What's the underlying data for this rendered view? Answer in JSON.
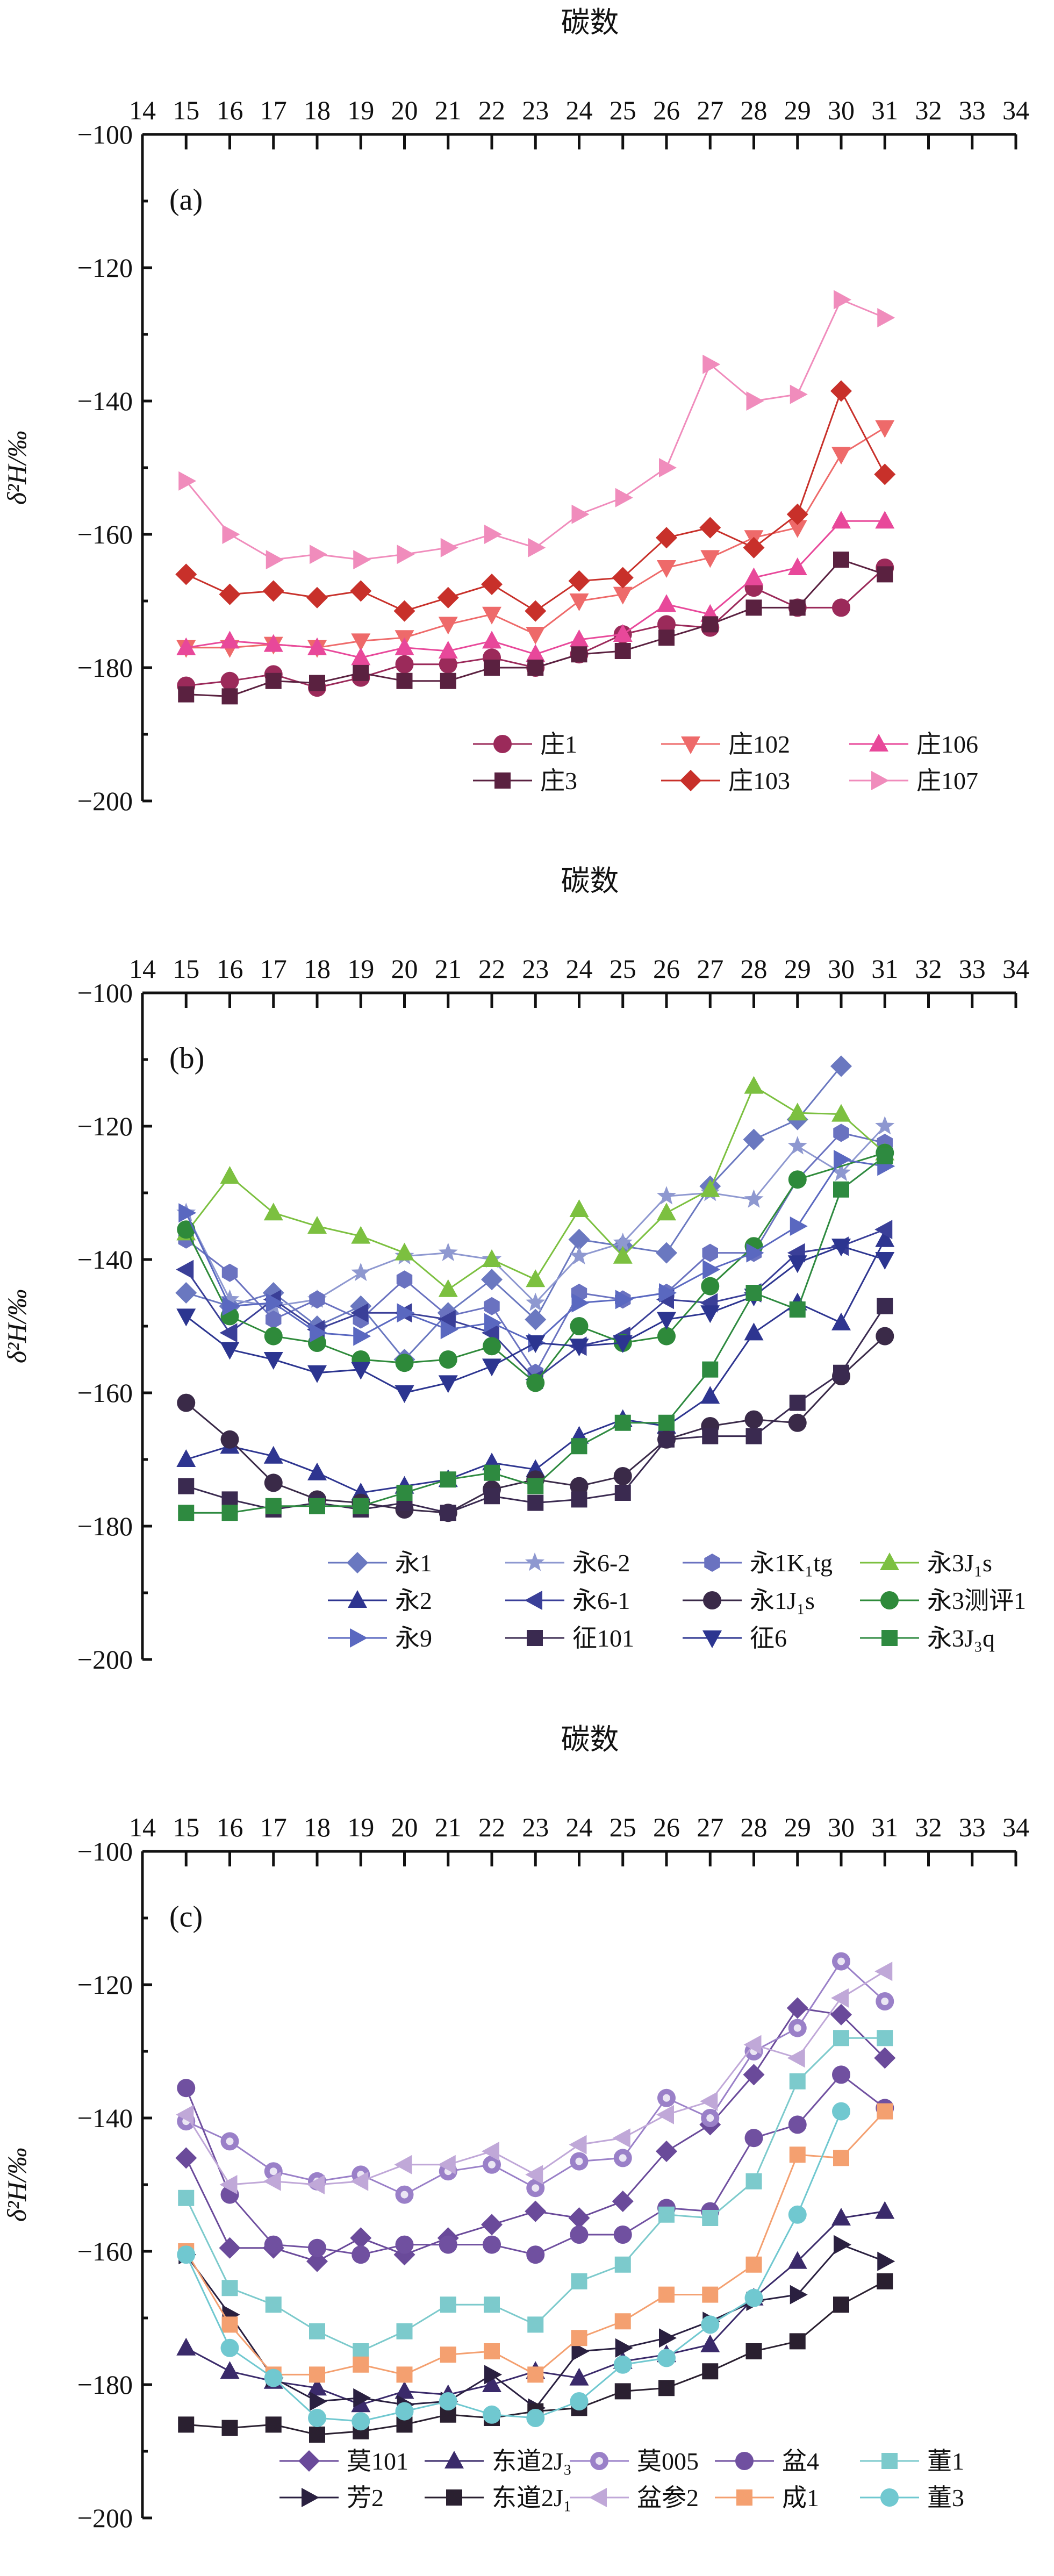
{
  "chart_data": [
    {
      "type": "line",
      "panel_label": "(a)",
      "title": "碳数",
      "ylabel": "δ²H/‰",
      "xlim": [
        14,
        34
      ],
      "ylim": [
        -200,
        -100
      ],
      "xticks": [
        14,
        15,
        16,
        17,
        18,
        19,
        20,
        21,
        22,
        23,
        24,
        25,
        26,
        27,
        28,
        29,
        30,
        31,
        32,
        33,
        34
      ],
      "yticks": [
        -100,
        -120,
        -140,
        -160,
        -180,
        -200
      ],
      "legend_cols": 3,
      "x": [
        15,
        16,
        17,
        18,
        19,
        20,
        21,
        22,
        23,
        24,
        25,
        26,
        27,
        28,
        29,
        30,
        31
      ],
      "series": [
        {
          "name": "庄1",
          "color": "#9b2a5a",
          "marker": "circle",
          "values": [
            -182.7,
            -182,
            -181,
            -183,
            -181.5,
            -179.5,
            -179.5,
            -178.5,
            -180,
            -178,
            -175,
            -173.5,
            -174,
            -168,
            -171,
            -171,
            -165
          ]
        },
        {
          "name": "庄102",
          "color": "#ee6a6a",
          "marker": "tri-down",
          "values": [
            -177,
            -177,
            -176.5,
            -177,
            -176,
            -175.5,
            -173.5,
            -172,
            -175,
            -170,
            -169,
            -165,
            -163.5,
            -160.5,
            -159,
            -148,
            -144
          ]
        },
        {
          "name": "庄106",
          "color": "#e8489a",
          "marker": "tri-up",
          "values": [
            -177,
            -176,
            -176.5,
            -177,
            -178.5,
            -177,
            -177.5,
            -176,
            -178,
            -175.8,
            -175,
            -170.5,
            -172,
            -166.5,
            -165,
            -158,
            -158
          ]
        },
        {
          "name": "庄3",
          "color": "#5a2140",
          "marker": "square",
          "values": [
            -184,
            -184.3,
            -182,
            -182.3,
            -180.8,
            -182,
            -182,
            -180,
            -180,
            -178,
            -177.5,
            -175.5,
            -173.5,
            -171,
            -171,
            -163.8,
            -166
          ]
        },
        {
          "name": "庄103",
          "color": "#c8302a",
          "marker": "diamond",
          "values": [
            -166,
            -169,
            -168.5,
            -169.5,
            -168.5,
            -171.5,
            -169.5,
            -167.5,
            -171.5,
            -167,
            -166.5,
            -160.5,
            -159,
            -162,
            -157,
            -138.5,
            -151
          ]
        },
        {
          "name": "庄107",
          "color": "#f08cbc",
          "marker": "tri-right",
          "values": [
            -152,
            -160,
            -163.8,
            -163,
            -163.8,
            -163,
            -162,
            -160,
            -162,
            -157,
            -154.5,
            -150,
            -134.5,
            -140,
            -139,
            -124.8,
            -127.5
          ]
        }
      ]
    },
    {
      "type": "line",
      "panel_label": "(b)",
      "title": "碳数",
      "ylabel": "δ²H/‰",
      "xlim": [
        14,
        34
      ],
      "ylim": [
        -200,
        -100
      ],
      "xticks": [
        14,
        15,
        16,
        17,
        18,
        19,
        20,
        21,
        22,
        23,
        24,
        25,
        26,
        27,
        28,
        29,
        30,
        31,
        32,
        33,
        34
      ],
      "yticks": [
        -100,
        -120,
        -140,
        -160,
        -180,
        -200
      ],
      "legend_cols": 4,
      "x": [
        15,
        16,
        17,
        18,
        19,
        20,
        21,
        22,
        23,
        24,
        25,
        26,
        27,
        28,
        29,
        30,
        31
      ],
      "series": [
        {
          "name": "永1",
          "color": "#6a78c0",
          "marker": "diamond",
          "values": [
            -145,
            -147,
            -145,
            -150,
            -147,
            -155,
            -148,
            -143,
            -149,
            -137,
            -138,
            -139,
            -129,
            -122,
            -119,
            -111,
            null
          ]
        },
        {
          "name": "永6-2",
          "color": "#8e98d0",
          "marker": "star",
          "values": [
            -133,
            -146,
            -147,
            -146,
            -142,
            -139.5,
            -139,
            -140,
            -146.5,
            -139.5,
            -137.5,
            -130.5,
            -130,
            -131,
            -123,
            -127,
            -120
          ]
        },
        {
          "name": "永1K₁tg",
          "color": "#6a72c0",
          "marker": "hexagon",
          "values": [
            -137,
            -142,
            -149,
            -146,
            -149,
            -143,
            -148.5,
            -147,
            -157,
            -145,
            -146,
            -145,
            -139,
            -139,
            -128,
            -121,
            -122.5
          ]
        },
        {
          "name": "永3J₁s",
          "color": "#7cc040",
          "marker": "tri-up",
          "values": [
            -136,
            -127.5,
            -133,
            -135,
            -136.5,
            -139,
            -144.5,
            -140,
            -143,
            -132.5,
            -139.5,
            -133,
            -129.5,
            -114,
            -118,
            -118.2,
            -124
          ]
        },
        {
          "name": "永2",
          "color": "#2e3590",
          "marker": "tri-up",
          "values": [
            -170,
            -168,
            -169.5,
            -172,
            -175,
            -174,
            -173,
            -170.5,
            -171.5,
            -166.5,
            -164,
            -165,
            -160.5,
            -151,
            -146.5,
            -149.5,
            -137
          ]
        },
        {
          "name": "永6-1",
          "color": "#3a3f98",
          "marker": "tri-left",
          "values": [
            -141.5,
            -151,
            -146,
            -150.5,
            -148,
            -148,
            -149,
            -151,
            -158,
            -153,
            -151.5,
            -146,
            -146.5,
            -145,
            -139,
            -138,
            -135.5
          ]
        },
        {
          "name": "永1J₁s",
          "color": "#3a2a48",
          "marker": "circle",
          "values": [
            -161.5,
            -167,
            -173.5,
            -176,
            -176.5,
            -177.5,
            -178,
            -174.5,
            -173,
            -174,
            -172.5,
            -167,
            -165,
            -164,
            -164.5,
            -157.5,
            -151.5
          ]
        },
        {
          "name": "永3测评1",
          "color": "#2e8a3a",
          "marker": "circle",
          "values": [
            -135.5,
            -148.5,
            -151.5,
            -152.5,
            -155,
            -155.5,
            -155,
            -153,
            -158.5,
            -150,
            -152.5,
            -151.5,
            -144,
            -138,
            -128,
            null,
            -124
          ]
        },
        {
          "name": "永9",
          "color": "#5a68c0",
          "marker": "tri-right",
          "values": [
            -133,
            -147,
            -146.5,
            -151,
            -151.5,
            -148,
            -150.5,
            -149.5,
            -152.5,
            -146.5,
            -146,
            -145,
            -141.5,
            -139,
            -135,
            -125,
            -126
          ]
        },
        {
          "name": "征101",
          "color": "#3a2a50",
          "marker": "square",
          "values": [
            -174,
            -176,
            -177.5,
            -176.5,
            -177.5,
            -176.5,
            -178,
            -175.5,
            -176.5,
            -176,
            -175,
            -167,
            -166.5,
            -166.5,
            -161.5,
            -157,
            -147
          ]
        },
        {
          "name": "征6",
          "color": "#2c3590",
          "marker": "tri-down",
          "values": [
            -148.5,
            -153.5,
            -155,
            -157,
            -156.5,
            -160,
            -158.5,
            -156,
            -152.5,
            -153,
            -152.5,
            -149,
            -148,
            -145.5,
            -140.5,
            -138,
            -140
          ]
        },
        {
          "name": "永3J₃q",
          "color": "#2e8a40",
          "marker": "square",
          "values": [
            -178,
            -178,
            -177,
            -177,
            -177,
            -175,
            -173,
            -172,
            -174,
            -168,
            -164.5,
            -164.5,
            -156.5,
            -145,
            -147.5,
            -129.5,
            -124.5
          ]
        }
      ]
    },
    {
      "type": "line",
      "panel_label": "(c)",
      "title": "碳数",
      "ylabel": "δ²H/‰",
      "xlim": [
        14,
        34
      ],
      "ylim": [
        -200,
        -100
      ],
      "xticks": [
        14,
        15,
        16,
        17,
        18,
        19,
        20,
        21,
        22,
        23,
        24,
        25,
        26,
        27,
        28,
        29,
        30,
        31,
        32,
        33,
        34
      ],
      "yticks": [
        -100,
        -120,
        -140,
        -160,
        -180,
        -200
      ],
      "legend_cols": 5,
      "x": [
        15,
        16,
        17,
        18,
        19,
        20,
        21,
        22,
        23,
        24,
        25,
        26,
        27,
        28,
        29,
        30,
        31
      ],
      "series": [
        {
          "name": "莫101",
          "color": "#6a4a9a",
          "marker": "diamond",
          "values": [
            -146,
            -159.5,
            -159.5,
            -161.5,
            -158,
            -160.5,
            -158,
            -156,
            -154,
            -155,
            -152.5,
            -145,
            -141,
            -133.5,
            -123.5,
            -124.5,
            -131
          ]
        },
        {
          "name": "东道2J₃",
          "color": "#3a2a6a",
          "marker": "tri-up",
          "values": [
            -174.5,
            -178,
            -179.5,
            -180.5,
            -183,
            -181,
            -181.5,
            -180,
            -178,
            -179,
            -176.5,
            -175.5,
            -174,
            -167,
            -161.5,
            -155,
            -154
          ]
        },
        {
          "name": "莫005",
          "color": "#9a80c8",
          "marker": "ring",
          "values": [
            -140.5,
            -143.5,
            -148,
            -149.5,
            -148.5,
            -151.5,
            -148,
            -147,
            -150.5,
            -146.5,
            -146,
            -137,
            -140,
            -130,
            -126.5,
            -116.5,
            -122.5
          ]
        },
        {
          "name": "盆4",
          "color": "#7050a0",
          "marker": "circle",
          "values": [
            -135.5,
            -151.5,
            -159,
            -159.5,
            -160.5,
            -159,
            -159,
            -159,
            -160.5,
            -157.5,
            -157.5,
            -153.5,
            -154,
            -143,
            -141,
            -133.5,
            -138.5
          ]
        },
        {
          "name": "董1",
          "color": "#7ccacc",
          "marker": "square",
          "values": [
            -152,
            -165.5,
            -168,
            -172,
            -175,
            -172,
            -168,
            -168,
            -171,
            -164.5,
            -162,
            -154.5,
            -155,
            -149.5,
            -134.5,
            -128,
            -128
          ]
        },
        {
          "name": "芳2",
          "color": "#2a2040",
          "marker": "tri-right",
          "values": [
            -160.5,
            -169.5,
            -179,
            -182.5,
            -182,
            -183,
            -182.5,
            -178.5,
            -183.5,
            -175,
            -174.5,
            -173,
            -170.5,
            -167.5,
            -166.5,
            -159,
            -161.5
          ]
        },
        {
          "name": "东道2J₁",
          "color": "#2a2030",
          "marker": "square",
          "values": [
            -186,
            -186.5,
            -186,
            -187.5,
            -187,
            -186,
            -184.5,
            -185,
            -184,
            -183.5,
            -181,
            -180.5,
            -178,
            -175,
            -173.5,
            -168,
            -164.5
          ]
        },
        {
          "name": "盆参2",
          "color": "#c0a8d8",
          "marker": "tri-left",
          "values": [
            -139.5,
            -150,
            -149.5,
            -150,
            -149.5,
            -147,
            -147,
            -145,
            -148.5,
            -144,
            -143,
            -139.5,
            -137.5,
            -129,
            -131,
            -122,
            -118
          ]
        },
        {
          "name": "成1",
          "color": "#f4a070",
          "marker": "square",
          "values": [
            -160,
            -171,
            -178.5,
            -178.5,
            -177,
            -178.5,
            -175.5,
            -175,
            -178.5,
            -173,
            -170.5,
            -166.5,
            -166.5,
            -162,
            -145.5,
            -146,
            -139
          ]
        },
        {
          "name": "董3",
          "color": "#70c8d0",
          "marker": "circle",
          "values": [
            -160.5,
            -174.5,
            -179,
            -185,
            -185.5,
            -184,
            -182.5,
            -184.5,
            -185,
            -182.5,
            -177,
            -176,
            -171,
            -167,
            -154.5,
            -139,
            null
          ]
        }
      ]
    }
  ]
}
